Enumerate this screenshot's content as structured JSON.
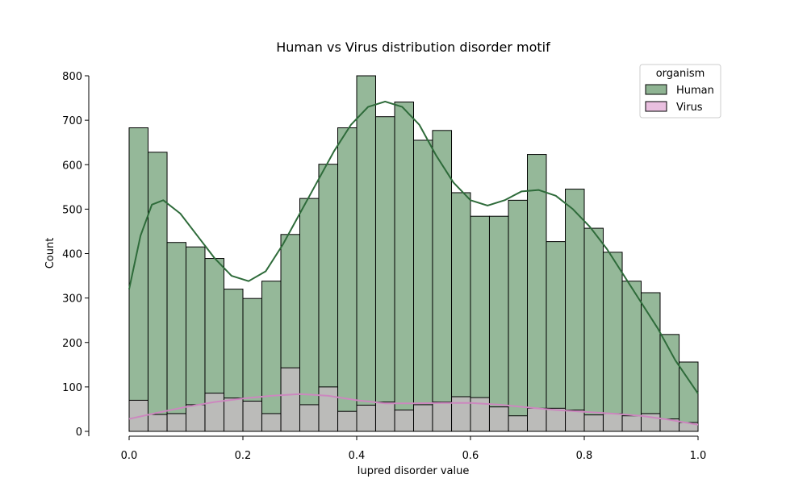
{
  "chart_data": {
    "type": "bar",
    "title": "Human vs Virus distribution disorder motif",
    "xlabel": "Iupred disorder value",
    "ylabel": "Count",
    "xlim": [
      0.0,
      1.0
    ],
    "ylim": [
      0,
      800
    ],
    "x_ticks": [
      "0.0",
      "0.2",
      "0.4",
      "0.6",
      "0.8",
      "1.0"
    ],
    "y_ticks": [
      "0",
      "100",
      "200",
      "300",
      "400",
      "500",
      "600",
      "700",
      "800"
    ],
    "bin_edges": [
      0.0,
      0.0333,
      0.0667,
      0.1,
      0.1333,
      0.1667,
      0.2,
      0.2333,
      0.2667,
      0.3,
      0.3333,
      0.3667,
      0.4,
      0.4333,
      0.4667,
      0.5,
      0.5333,
      0.5667,
      0.6,
      0.6333,
      0.6667,
      0.7,
      0.7333,
      0.7667,
      0.8,
      0.8333,
      0.8667,
      0.9,
      0.9333,
      0.9667,
      1.0
    ],
    "legend": {
      "title": "organism",
      "placement": "top-right"
    },
    "series": [
      {
        "name": "Human",
        "color": "#2e6b3a",
        "fill": "#8fb493",
        "values": [
          683,
          628,
          425,
          415,
          389,
          320,
          299,
          338,
          443,
          524,
          601,
          683,
          800,
          708,
          741,
          655,
          677,
          537,
          484,
          484,
          520,
          623,
          427,
          545,
          457,
          403,
          338,
          312,
          218,
          156
        ],
        "kde": [
          [
            0.0,
            320
          ],
          [
            0.02,
            440
          ],
          [
            0.04,
            510
          ],
          [
            0.06,
            520
          ],
          [
            0.09,
            490
          ],
          [
            0.12,
            440
          ],
          [
            0.15,
            390
          ],
          [
            0.18,
            350
          ],
          [
            0.21,
            338
          ],
          [
            0.24,
            360
          ],
          [
            0.27,
            420
          ],
          [
            0.3,
            490
          ],
          [
            0.33,
            560
          ],
          [
            0.36,
            630
          ],
          [
            0.39,
            690
          ],
          [
            0.42,
            730
          ],
          [
            0.45,
            742
          ],
          [
            0.48,
            730
          ],
          [
            0.51,
            690
          ],
          [
            0.54,
            620
          ],
          [
            0.57,
            560
          ],
          [
            0.6,
            520
          ],
          [
            0.63,
            508
          ],
          [
            0.66,
            520
          ],
          [
            0.69,
            540
          ],
          [
            0.72,
            543
          ],
          [
            0.75,
            530
          ],
          [
            0.78,
            500
          ],
          [
            0.81,
            460
          ],
          [
            0.84,
            410
          ],
          [
            0.87,
            350
          ],
          [
            0.9,
            290
          ],
          [
            0.93,
            230
          ],
          [
            0.96,
            160
          ],
          [
            1.0,
            85
          ]
        ]
      },
      {
        "name": "Virus",
        "color": "#cc88bf",
        "fill": "#e9bfdf",
        "values": [
          70,
          38,
          40,
          60,
          86,
          75,
          68,
          40,
          143,
          60,
          100,
          45,
          59,
          66,
          48,
          60,
          66,
          78,
          76,
          55,
          35,
          52,
          52,
          48,
          37,
          40,
          35,
          40,
          28,
          20
        ],
        "kde": [
          [
            0.0,
            28
          ],
          [
            0.05,
            42
          ],
          [
            0.1,
            55
          ],
          [
            0.15,
            66
          ],
          [
            0.2,
            74
          ],
          [
            0.25,
            80
          ],
          [
            0.3,
            84
          ],
          [
            0.35,
            80
          ],
          [
            0.4,
            70
          ],
          [
            0.45,
            63
          ],
          [
            0.5,
            63
          ],
          [
            0.55,
            64
          ],
          [
            0.6,
            64
          ],
          [
            0.65,
            60
          ],
          [
            0.7,
            54
          ],
          [
            0.75,
            48
          ],
          [
            0.8,
            44
          ],
          [
            0.85,
            40
          ],
          [
            0.9,
            35
          ],
          [
            0.95,
            26
          ],
          [
            1.0,
            15
          ]
        ]
      }
    ]
  }
}
